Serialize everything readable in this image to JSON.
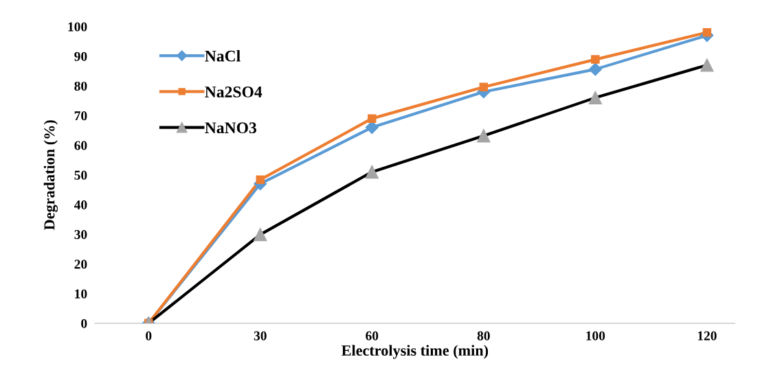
{
  "chart_data": {
    "type": "line",
    "xlabel": "Electrolysis time (min)",
    "ylabel": "Degradation (%)",
    "categories": [
      "0",
      "30",
      "60",
      "80",
      "100",
      "120"
    ],
    "ylim": [
      0,
      100
    ],
    "yticks": [
      0,
      10,
      20,
      30,
      40,
      50,
      60,
      70,
      80,
      90,
      100
    ],
    "legend": "top left",
    "grid": false,
    "series": [
      {
        "name": "NaCl",
        "color": "#5b9bd5",
        "marker": "diamond",
        "values": [
          0,
          47,
          66,
          78,
          85.6,
          97
        ]
      },
      {
        "name": "Na2SO4",
        "color": "#ed7d31",
        "marker": "square",
        "values": [
          0,
          48.4,
          69,
          79.6,
          88.9,
          98
        ]
      },
      {
        "name": "NaNO3",
        "color": "#000000",
        "colors": [
          "#a5a5a5",
          "#a5a5a5",
          "#a5a5a5",
          "#a5a5a5",
          "#a5a5a5",
          "#a5a5a5"
        ],
        "marker": "triangle",
        "values": [
          0,
          29.9,
          51,
          63.2,
          76,
          87
        ]
      }
    ]
  }
}
